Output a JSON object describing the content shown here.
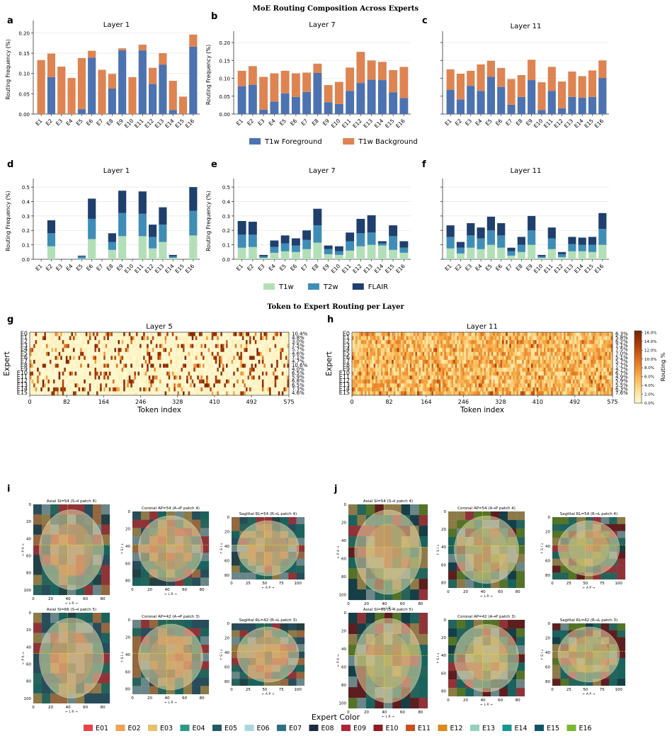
{
  "figure": {
    "title1": "MoE Routing Composition Across Experts",
    "title2": "Token to Expert Routing per Layer",
    "panel_letters": [
      "a",
      "b",
      "c",
      "d",
      "e",
      "f",
      "g",
      "h",
      "i",
      "j"
    ],
    "experts": [
      "E1",
      "E2",
      "E3",
      "E4",
      "E5",
      "E6",
      "E7",
      "E8",
      "E9",
      "E10",
      "E11",
      "E12",
      "E13",
      "E14",
      "E15",
      "E16"
    ]
  },
  "colors": {
    "fg": "#4c72b0",
    "bg": "#dd8452",
    "t1w": "#b3dfb8",
    "t2w": "#3f8db7",
    "flair": "#1f3f6d",
    "spine": "#333333",
    "grid": "#e6e6e6"
  },
  "chart_data": [
    {
      "id": "a",
      "type": "bar",
      "stacked": true,
      "title": "Layer 1",
      "ylabel": "Routing Frequency (%)",
      "ylim": [
        0,
        0.22
      ],
      "yticks": [
        0.0,
        0.05,
        0.1,
        0.15,
        0.2
      ],
      "ytick_labels": [
        "0.00",
        "0.05",
        "0.10",
        "0.15",
        "0.20"
      ],
      "series": [
        {
          "name": "T1w Foreground",
          "color": "fg",
          "values": [
            0.0,
            0.091,
            0.0,
            0.0,
            0.012,
            0.139,
            0.0,
            0.063,
            0.157,
            0.0,
            0.157,
            0.074,
            0.122,
            0.01,
            0.0,
            0.166
          ]
        },
        {
          "name": "T1w Background",
          "color": "bg",
          "values": [
            0.133,
            0.058,
            0.117,
            0.089,
            0.126,
            0.017,
            0.109,
            0.036,
            0.005,
            0.091,
            0.014,
            0.04,
            0.028,
            0.072,
            0.043,
            0.03
          ]
        }
      ]
    },
    {
      "id": "b",
      "type": "bar",
      "stacked": true,
      "title": "Layer 7",
      "ylabel": "Routing Frequency (%)",
      "ylim": [
        0,
        0.22
      ],
      "yticks": [
        0.0,
        0.05,
        0.1,
        0.15,
        0.2
      ],
      "ytick_labels": [
        "0.00",
        "0.05",
        "0.10",
        "0.15",
        "0.20"
      ],
      "series": [
        {
          "name": "T1w Foreground",
          "color": "fg",
          "values": [
            0.078,
            0.082,
            0.012,
            0.035,
            0.058,
            0.048,
            0.062,
            0.115,
            0.033,
            0.028,
            0.065,
            0.087,
            0.096,
            0.095,
            0.061,
            0.045
          ]
        },
        {
          "name": "T1w Background",
          "color": "bg",
          "values": [
            0.043,
            0.052,
            0.092,
            0.079,
            0.063,
            0.066,
            0.054,
            0.026,
            0.048,
            0.062,
            0.065,
            0.087,
            0.054,
            0.051,
            0.062,
            0.087
          ]
        }
      ]
    },
    {
      "id": "c",
      "type": "bar",
      "stacked": true,
      "title": "Layer 11",
      "ylabel": "",
      "ylim": [
        0,
        0.22
      ],
      "yticks": [
        0.0,
        0.05,
        0.1,
        0.15,
        0.2
      ],
      "ytick_labels": [],
      "series": [
        {
          "name": "T1w Foreground",
          "color": "fg",
          "values": [
            0.068,
            0.041,
            0.079,
            0.065,
            0.104,
            0.076,
            0.026,
            0.048,
            0.095,
            0.011,
            0.065,
            0.016,
            0.048,
            0.046,
            0.048,
            0.101
          ]
        },
        {
          "name": "T1w Background",
          "color": "bg",
          "values": [
            0.057,
            0.072,
            0.042,
            0.074,
            0.045,
            0.053,
            0.072,
            0.061,
            0.057,
            0.078,
            0.067,
            0.075,
            0.071,
            0.06,
            0.074,
            0.049
          ]
        }
      ]
    },
    {
      "id": "d",
      "type": "bar",
      "stacked": true,
      "title": "Layer 1",
      "ylabel": "Routing Frequency (%)",
      "ylim": [
        0,
        0.53
      ],
      "yticks": [
        0.0,
        0.1,
        0.2,
        0.3,
        0.4,
        0.5
      ],
      "ytick_labels": [
        "0.0",
        "0.1",
        "0.2",
        "0.3",
        "0.4",
        "0.5"
      ],
      "series": [
        {
          "name": "T1w",
          "color": "t1w",
          "values": [
            0.0,
            0.09,
            0.0,
            0.0,
            0.005,
            0.14,
            0.0,
            0.065,
            0.16,
            0.0,
            0.16,
            0.075,
            0.12,
            0.01,
            0.0,
            0.165
          ]
        },
        {
          "name": "T2w",
          "color": "t2w",
          "values": [
            0.0,
            0.09,
            0.0,
            0.0,
            0.015,
            0.14,
            0.0,
            0.055,
            0.16,
            0.0,
            0.155,
            0.08,
            0.12,
            0.01,
            0.0,
            0.17
          ]
        },
        {
          "name": "FLAIR",
          "color": "flair",
          "values": [
            0.0,
            0.09,
            0.0,
            0.0,
            0.005,
            0.14,
            0.0,
            0.06,
            0.155,
            0.0,
            0.155,
            0.085,
            0.12,
            0.01,
            0.0,
            0.165
          ]
        }
      ]
    },
    {
      "id": "e",
      "type": "bar",
      "stacked": true,
      "title": "Layer 7",
      "ylabel": "Routing Frequency (%)",
      "ylim": [
        0,
        0.53
      ],
      "yticks": [
        0.0,
        0.1,
        0.2,
        0.3,
        0.4,
        0.5
      ],
      "ytick_labels": [
        "0.0",
        "0.1",
        "0.2",
        "0.3",
        "0.4",
        "0.5"
      ],
      "series": [
        {
          "name": "T1w",
          "color": "t1w",
          "values": [
            0.08,
            0.085,
            0.01,
            0.045,
            0.055,
            0.05,
            0.07,
            0.115,
            0.035,
            0.03,
            0.06,
            0.09,
            0.1,
            0.095,
            0.065,
            0.045
          ]
        },
        {
          "name": "T2w",
          "color": "t2w",
          "values": [
            0.09,
            0.085,
            0.01,
            0.04,
            0.055,
            0.045,
            0.065,
            0.12,
            0.035,
            0.025,
            0.065,
            0.09,
            0.085,
            0.015,
            0.095,
            0.035
          ]
        },
        {
          "name": "FLAIR",
          "color": "flair",
          "values": [
            0.095,
            0.09,
            0.01,
            0.045,
            0.055,
            0.05,
            0.065,
            0.115,
            0.025,
            0.035,
            0.06,
            0.1,
            0.12,
            0.015,
            0.075,
            0.045
          ]
        }
      ]
    },
    {
      "id": "f",
      "type": "bar",
      "stacked": true,
      "title": "Layer 11",
      "ylabel": "",
      "ylim": [
        0,
        0.53
      ],
      "yticks": [
        0.0,
        0.1,
        0.2,
        0.3,
        0.4,
        0.5
      ],
      "ytick_labels": [],
      "series": [
        {
          "name": "T1w",
          "color": "t1w",
          "values": [
            0.075,
            0.04,
            0.08,
            0.07,
            0.1,
            0.08,
            0.025,
            0.05,
            0.1,
            0.01,
            0.07,
            0.015,
            0.055,
            0.055,
            0.05,
            0.1
          ]
        },
        {
          "name": "T2w",
          "color": "t2w",
          "values": [
            0.08,
            0.04,
            0.085,
            0.075,
            0.1,
            0.085,
            0.03,
            0.05,
            0.1,
            0.01,
            0.075,
            0.02,
            0.05,
            0.045,
            0.05,
            0.11
          ]
        },
        {
          "name": "FLAIR",
          "color": "flair",
          "values": [
            0.08,
            0.04,
            0.085,
            0.075,
            0.095,
            0.085,
            0.025,
            0.055,
            0.1,
            0.01,
            0.075,
            0.015,
            0.05,
            0.05,
            0.055,
            0.11
          ]
        }
      ]
    },
    {
      "id": "g",
      "type": "heatmap",
      "title": "Layer 5",
      "xlabel": "Token index",
      "ylabel": "Expert",
      "rows": [
        "E0",
        "E1",
        "E2",
        "E3",
        "E4",
        "E5",
        "E6",
        "E7",
        "E8",
        "E9",
        "E10",
        "E11",
        "E12",
        "E13",
        "E14",
        "E15"
      ],
      "row_percent": [
        "10.4%",
        "4.8%",
        "3.0%",
        "7.5%",
        "5.7%",
        "4.6%",
        "7.1%",
        "4.7%",
        "10.6%",
        "4.0%",
        "6.5%",
        "5.9%",
        "6.8%",
        "6.5%",
        "7.3%",
        "4.6%"
      ],
      "xticks": [
        0,
        82,
        164,
        246,
        328,
        410,
        492,
        575
      ],
      "xlim": [
        0,
        575
      ]
    },
    {
      "id": "h",
      "type": "heatmap",
      "title": "Layer 11",
      "xlabel": "Token index",
      "ylabel": "Expert",
      "rows": [
        "E0",
        "E1",
        "E2",
        "E3",
        "E4",
        "E5",
        "E6",
        "E7",
        "E8",
        "E9",
        "E10",
        "E11",
        "E12",
        "E13",
        "E14",
        "E15"
      ],
      "row_percent": [
        "6.3%",
        "5.8%",
        "6.2%",
        "7.1%",
        "7.5%",
        "7.0%",
        "5.1%",
        "5.7%",
        "7.7%",
        "4.7%",
        "6.7%",
        "4.9%",
        "5.9%",
        "5.5%",
        "6.3%",
        "7.6%"
      ],
      "xticks": [
        0,
        82,
        164,
        246,
        328,
        410,
        492,
        575
      ],
      "xlim": [
        0,
        575
      ],
      "colorbar": {
        "label": "Routing %",
        "ticks": [
          "0.0%",
          "2.0%",
          "4.0%",
          "6.0%",
          "8.0%",
          "10.0%",
          "12.0%",
          "14.0%",
          "16.0%"
        ]
      }
    }
  ],
  "legends": {
    "row1": [
      "T1w Foreground",
      "T1w Background"
    ],
    "row2": [
      "T1w",
      "T2w",
      "FLAIR"
    ]
  },
  "brains": {
    "views": [
      {
        "title": "Axial  SI=54  (S→I patch 4)",
        "yticks": [
          "0",
          "20",
          "40",
          "60",
          "80",
          "100"
        ],
        "xticks": [
          "0",
          "20",
          "40",
          "60",
          "80"
        ],
        "xlab": "← L    R →",
        "ylab": "← P    A →"
      },
      {
        "title": "Coronal  AP=54  (A→P patch 4)",
        "yticks": [
          "0",
          "20",
          "40",
          "60",
          "80"
        ],
        "xticks": [
          "0",
          "20",
          "40",
          "60",
          "80"
        ],
        "xlab": "← L    R →",
        "ylab": "↑ S    I ↓"
      },
      {
        "title": "Sagittal  RL=54  (R→L patch 4)",
        "yticks": [
          "0",
          "20",
          "40",
          "60",
          "80"
        ],
        "xticks": [
          "0",
          "25",
          "50",
          "75",
          "100"
        ],
        "xlab": "← A    P →",
        "ylab": "↑ S    I ↓"
      },
      {
        "title": "Axial  SI=66  (S→I patch 5)",
        "yticks": [
          "0",
          "20",
          "40",
          "60",
          "80",
          "100"
        ],
        "xticks": [
          "0",
          "20",
          "40",
          "60",
          "80"
        ],
        "xlab": "← L    R →",
        "ylab": "← P    A →"
      },
      {
        "title": "Coronal  AP=42  (A→P patch 3)",
        "yticks": [
          "0",
          "20",
          "40",
          "60",
          "80"
        ],
        "xticks": [
          "0",
          "20",
          "40",
          "60",
          "80"
        ],
        "xlab": "← L    R →",
        "ylab": "↑ S    I ↓"
      },
      {
        "title": "Sagittal  RL=42  (R→L patch 3)",
        "yticks": [
          "0",
          "20",
          "40",
          "60",
          "80"
        ],
        "xticks": [
          "0",
          "25",
          "50",
          "75",
          "100"
        ],
        "xlab": "← A    P →",
        "ylab": "↑ S    I ↓"
      }
    ]
  },
  "expert_legend": {
    "title": "Expert Color",
    "items": [
      {
        "label": "E01",
        "color": "#e8444d"
      },
      {
        "label": "E02",
        "color": "#f0a05a"
      },
      {
        "label": "E03",
        "color": "#e6c26a"
      },
      {
        "label": "E04",
        "color": "#2a9a86"
      },
      {
        "label": "E05",
        "color": "#245a61"
      },
      {
        "label": "E06",
        "color": "#a8d8dc"
      },
      {
        "label": "E07",
        "color": "#2e6f88"
      },
      {
        "label": "E08",
        "color": "#1d2a44"
      },
      {
        "label": "E09",
        "color": "#b0243a"
      },
      {
        "label": "E10",
        "color": "#8e1b1f"
      },
      {
        "label": "E11",
        "color": "#c9501c"
      },
      {
        "label": "E12",
        "color": "#d98a1c"
      },
      {
        "label": "E13",
        "color": "#94d2b9"
      },
      {
        "label": "E14",
        "color": "#16978e"
      },
      {
        "label": "E15",
        "color": "#0d5565"
      },
      {
        "label": "E16",
        "color": "#7db72f"
      }
    ]
  }
}
